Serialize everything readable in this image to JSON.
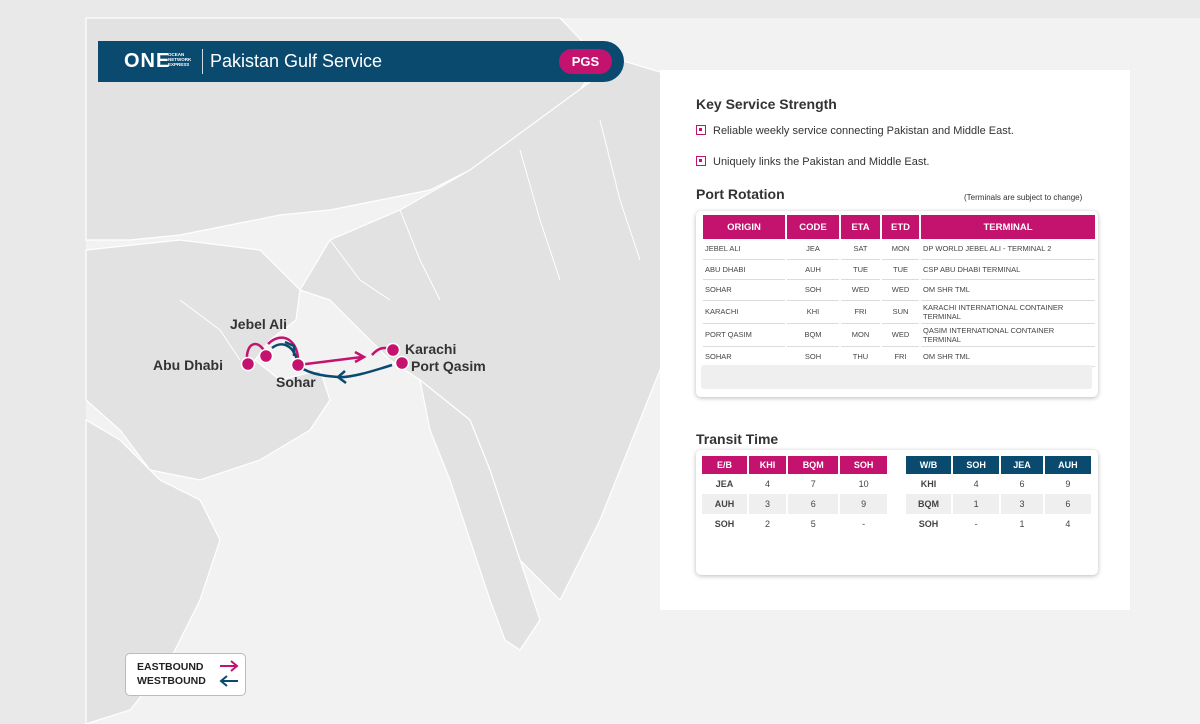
{
  "header": {
    "logo_text": "ONE",
    "logo_sub": "OCEAN NETWORK EXPRESS",
    "title": "Pakistan Gulf Service",
    "code": "PGS",
    "brand_color": "#c4136e",
    "navy_color": "#0b4a6f"
  },
  "map": {
    "ports": [
      {
        "name": "Jebel Ali"
      },
      {
        "name": "Abu Dhabi"
      },
      {
        "name": "Sohar"
      },
      {
        "name": "Karachi"
      },
      {
        "name": "Port Qasim"
      }
    ],
    "legend": {
      "eastbound": "EASTBOUND",
      "westbound": "WESTBOUND"
    }
  },
  "strength": {
    "title": "Key Service Strength",
    "items": [
      "Reliable weekly service connecting Pakistan and Middle East.",
      "Uniquely links the Pakistan and Middle East."
    ]
  },
  "rotation": {
    "title": "Port Rotation",
    "note": "(Terminals are subject to change)",
    "headers": [
      "ORIGIN",
      "CODE",
      "ETA",
      "ETD",
      "TERMINAL"
    ],
    "rows": [
      [
        "JEBEL ALI",
        "JEA",
        "SAT",
        "MON",
        "DP WORLD JEBEL ALI - TERMINAL 2"
      ],
      [
        "ABU DHABI",
        "AUH",
        "TUE",
        "TUE",
        "CSP ABU DHABI TERMINAL"
      ],
      [
        "SOHAR",
        "SOH",
        "WED",
        "WED",
        "OM SHR TML"
      ],
      [
        "KARACHI",
        "KHI",
        "FRI",
        "SUN",
        "KARACHI INTERNATIONAL CONTAINER TERMINAL"
      ],
      [
        "PORT QASIM",
        "BQM",
        "MON",
        "WED",
        "QASIM INTERNATIONAL CONTAINER TERMINAL"
      ],
      [
        "SOHAR",
        "SOH",
        "THU",
        "FRI",
        "OM SHR TML"
      ]
    ]
  },
  "transit": {
    "title": "Transit Time",
    "eastbound": {
      "headers": [
        "E/B",
        "KHI",
        "BQM",
        "SOH"
      ],
      "rows": [
        [
          "JEA",
          "4",
          "7",
          "10"
        ],
        [
          "AUH",
          "3",
          "6",
          "9"
        ],
        [
          "SOH",
          "2",
          "5",
          "-"
        ]
      ]
    },
    "westbound": {
      "headers": [
        "W/B",
        "SOH",
        "JEA",
        "AUH"
      ],
      "rows": [
        [
          "KHI",
          "4",
          "6",
          "9"
        ],
        [
          "BQM",
          "1",
          "3",
          "6"
        ],
        [
          "SOH",
          "-",
          "1",
          "4"
        ]
      ]
    }
  }
}
